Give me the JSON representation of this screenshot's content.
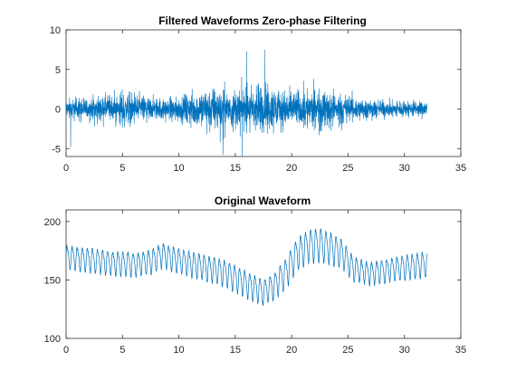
{
  "chart_data": [
    {
      "type": "line",
      "title": "Filtered Waveforms Zero-phase Filtering",
      "xlabel": "",
      "ylabel": "",
      "xlim": [
        0,
        35
      ],
      "ylim": [
        -6,
        10
      ],
      "xticks": [
        0,
        5,
        10,
        15,
        20,
        25,
        30,
        35
      ],
      "yticks": [
        -5,
        0,
        5,
        10
      ],
      "grid": false,
      "series": [
        {
          "color": "#0072BD",
          "x_range": [
            0,
            32
          ],
          "center": 0,
          "envelope_x": [
            0,
            2,
            4,
            5,
            6,
            7,
            8,
            9,
            10,
            11,
            12,
            13,
            14,
            15,
            16,
            17,
            18,
            19,
            20,
            21,
            22,
            23,
            24,
            25,
            26,
            27,
            28,
            29,
            30,
            31,
            32
          ],
          "envelope_amplitude": [
            2.6,
            2.8,
            3.4,
            4.2,
            3.9,
            3.2,
            2.8,
            2.9,
            3.0,
            4.2,
            5.0,
            5.3,
            5.0,
            4.9,
            5.1,
            6.6,
            6.3,
            5.0,
            4.5,
            4.6,
            5.0,
            4.9,
            4.3,
            3.4,
            2.8,
            2.4,
            2.2,
            2.1,
            2.1,
            2.2,
            2.1
          ],
          "extremes": [
            {
              "x": 16.0,
              "y": 7.3
            },
            {
              "x": 17.6,
              "y": 7.5
            },
            {
              "x": 13.9,
              "y": -5.8
            },
            {
              "x": 15.6,
              "y": -6.0
            },
            {
              "x": 0.4,
              "y": -4.8
            }
          ]
        }
      ]
    },
    {
      "type": "line",
      "title": "Original Waveform",
      "xlabel": "",
      "ylabel": "",
      "xlim": [
        0,
        35
      ],
      "ylim": [
        100,
        210
      ],
      "xticks": [
        0,
        5,
        10,
        15,
        20,
        25,
        30,
        35
      ],
      "yticks": [
        100,
        150,
        200
      ],
      "grid": false,
      "series": [
        {
          "color": "#0072BD",
          "x_range": [
            0,
            32
          ],
          "oscillation_period": 0.45,
          "baseline_x": [
            0,
            2,
            4,
            6,
            7.5,
            8.5,
            10,
            12,
            14,
            16,
            17.5,
            18.5,
            19.5,
            20.5,
            21.5,
            22.5,
            23.5,
            24.5,
            25.5,
            27,
            29,
            31,
            32
          ],
          "baseline": [
            170,
            168,
            165,
            164,
            166,
            172,
            167,
            162,
            157,
            147,
            140,
            146,
            157,
            173,
            180,
            181,
            178,
            173,
            160,
            156,
            160,
            163,
            164
          ],
          "amplitude_x": [
            0,
            4,
            8,
            12,
            16,
            18,
            20,
            22,
            24,
            26,
            28,
            32
          ],
          "amplitude": [
            18,
            19,
            19,
            20,
            21,
            20,
            25,
            27,
            24,
            18,
            18,
            20
          ]
        }
      ]
    }
  ]
}
